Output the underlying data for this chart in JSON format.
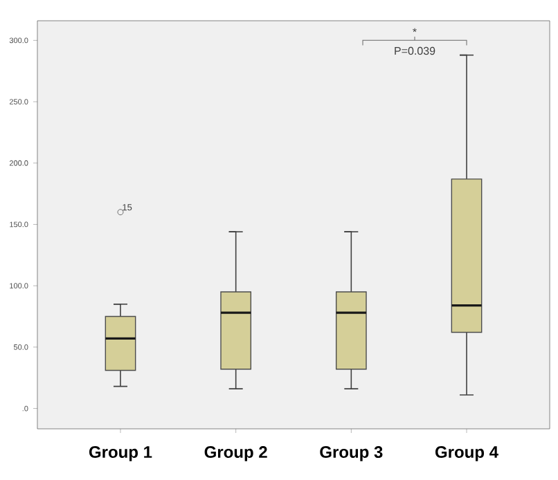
{
  "chart_data": {
    "type": "box",
    "categories": [
      "Group 1",
      "Group 2",
      "Group 3",
      "Group 4"
    ],
    "boxes": [
      {
        "low": 18,
        "q1": 31,
        "median": 57,
        "q3": 75,
        "high": 85,
        "outliers": [
          160
        ]
      },
      {
        "low": 16,
        "q1": 32,
        "median": 78,
        "q3": 95,
        "high": 144
      },
      {
        "low": 16,
        "q1": 32,
        "median": 78,
        "q3": 95,
        "high": 144
      },
      {
        "low": 11,
        "q1": 62,
        "median": 84,
        "q3": 187,
        "high": 288
      }
    ],
    "color": "#d5cf98",
    "ylim": [
      -16.6,
      316
    ],
    "yticks": [
      {
        "value": 0,
        "label": ".0"
      },
      {
        "value": 50,
        "label": "50.0"
      },
      {
        "value": 100,
        "label": "100.0"
      },
      {
        "value": 150,
        "label": "150.0"
      },
      {
        "value": 200,
        "label": "200.0"
      },
      {
        "value": 250,
        "label": "250.0"
      },
      {
        "value": 300,
        "label": "300.0"
      }
    ],
    "annotations": [
      "15",
      "*",
      "P=0.039"
    ],
    "grid": false
  }
}
